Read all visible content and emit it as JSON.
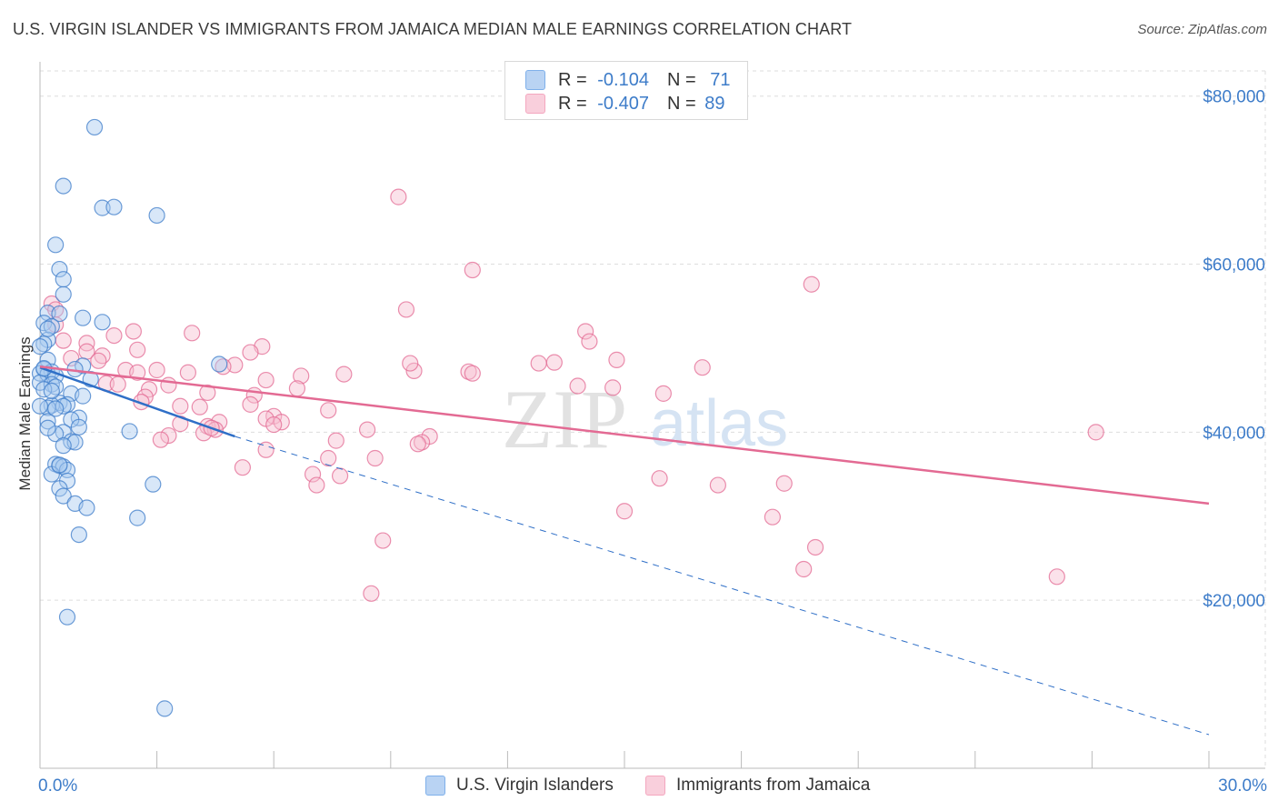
{
  "title": "U.S. VIRGIN ISLANDER VS IMMIGRANTS FROM JAMAICA MEDIAN MALE EARNINGS CORRELATION CHART",
  "source": "Source: ZipAtlas.com",
  "watermark": {
    "zip": "ZIP",
    "atlas": "atlas"
  },
  "legend": {
    "rows": [
      {
        "r_label": "R =",
        "r_value": "-0.104",
        "n_label": "N =",
        "n_value": "71",
        "color": "#7fb0ea"
      },
      {
        "r_label": "R =",
        "r_value": "-0.407",
        "n_label": "N =",
        "n_value": "89",
        "color": "#f4a7bf"
      }
    ]
  },
  "bottom_legend": [
    {
      "label": "U.S. Virgin Islanders",
      "color": "#7fb0ea"
    },
    {
      "label": "Immigrants from Jamaica",
      "color": "#f4a7bf"
    }
  ],
  "chart_data": {
    "type": "scatter",
    "title": "U.S. VIRGIN ISLANDER VS IMMIGRANTS FROM JAMAICA MEDIAN MALE EARNINGS CORRELATION CHART",
    "xlabel": "",
    "ylabel": "Median Male Earnings",
    "xlim": [
      0,
      30
    ],
    "ylim": [
      0,
      83000
    ],
    "x_tick_labels": [
      "0.0%",
      "30.0%"
    ],
    "y_ticks": [
      20000,
      40000,
      60000,
      80000
    ],
    "y_tick_labels": [
      "$20,000",
      "$40,000",
      "$60,000",
      "$80,000"
    ],
    "series": [
      {
        "name": "U.S. Virgin Islanders",
        "color": "#3d7cc9",
        "fill": "#a9c9f0",
        "points": [
          [
            1.4,
            76300
          ],
          [
            0.6,
            69300
          ],
          [
            1.6,
            66700
          ],
          [
            1.9,
            66800
          ],
          [
            3.0,
            65800
          ],
          [
            0.4,
            62300
          ],
          [
            0.5,
            59400
          ],
          [
            0.6,
            58200
          ],
          [
            0.6,
            56400
          ],
          [
            0.2,
            54200
          ],
          [
            0.5,
            54100
          ],
          [
            1.1,
            53600
          ],
          [
            1.6,
            53100
          ],
          [
            0.1,
            53000
          ],
          [
            0.3,
            52600
          ],
          [
            0.2,
            51000
          ],
          [
            0.1,
            50500
          ],
          [
            0.0,
            50200
          ],
          [
            0.2,
            48600
          ],
          [
            1.1,
            47900
          ],
          [
            0.1,
            47500
          ],
          [
            0.3,
            47200
          ],
          [
            0.0,
            47000
          ],
          [
            0.2,
            46900
          ],
          [
            0.4,
            46700
          ],
          [
            1.3,
            46300
          ],
          [
            0.0,
            45900
          ],
          [
            0.3,
            45700
          ],
          [
            0.4,
            45400
          ],
          [
            0.1,
            45100
          ],
          [
            0.8,
            44600
          ],
          [
            1.1,
            44300
          ],
          [
            0.5,
            43500
          ],
          [
            0.7,
            43300
          ],
          [
            0.3,
            43200
          ],
          [
            0.6,
            43100
          ],
          [
            0.2,
            42900
          ],
          [
            1.0,
            41700
          ],
          [
            0.8,
            41500
          ],
          [
            0.2,
            41300
          ],
          [
            1.0,
            40600
          ],
          [
            0.6,
            40000
          ],
          [
            0.4,
            39800
          ],
          [
            2.3,
            40100
          ],
          [
            0.8,
            38900
          ],
          [
            0.9,
            38800
          ],
          [
            0.4,
            36200
          ],
          [
            0.5,
            36000
          ],
          [
            0.6,
            35900
          ],
          [
            0.3,
            35000
          ],
          [
            0.7,
            35500
          ],
          [
            0.7,
            34200
          ],
          [
            2.9,
            33800
          ],
          [
            0.5,
            33300
          ],
          [
            0.6,
            32400
          ],
          [
            0.9,
            31500
          ],
          [
            1.2,
            31000
          ],
          [
            2.5,
            29800
          ],
          [
            1.0,
            27800
          ],
          [
            0.7,
            18000
          ],
          [
            3.2,
            7100
          ],
          [
            4.6,
            48100
          ],
          [
            0.5,
            36100
          ],
          [
            0.2,
            40500
          ],
          [
            0.1,
            47600
          ],
          [
            0.3,
            44900
          ],
          [
            0.0,
            43100
          ],
          [
            0.9,
            47500
          ],
          [
            0.6,
            38400
          ],
          [
            0.4,
            42800
          ],
          [
            0.2,
            52300
          ]
        ]
      },
      {
        "name": "Immigrants from Jamaica",
        "color": "#e36a93",
        "fill": "#f6bfd0",
        "points": [
          [
            0.3,
            55300
          ],
          [
            0.4,
            54600
          ],
          [
            0.4,
            52800
          ],
          [
            0.6,
            50900
          ],
          [
            2.4,
            52000
          ],
          [
            3.9,
            51800
          ],
          [
            1.9,
            51500
          ],
          [
            1.2,
            50600
          ],
          [
            2.5,
            49800
          ],
          [
            1.2,
            49600
          ],
          [
            5.7,
            50200
          ],
          [
            5.4,
            49500
          ],
          [
            1.6,
            49100
          ],
          [
            0.8,
            48800
          ],
          [
            1.5,
            48500
          ],
          [
            5.0,
            48000
          ],
          [
            4.7,
            47800
          ],
          [
            2.2,
            47400
          ],
          [
            3.0,
            47400
          ],
          [
            3.8,
            47100
          ],
          [
            2.5,
            47100
          ],
          [
            6.7,
            46700
          ],
          [
            7.8,
            46900
          ],
          [
            1.7,
            45800
          ],
          [
            2.0,
            45700
          ],
          [
            3.3,
            45600
          ],
          [
            2.8,
            45100
          ],
          [
            6.6,
            45200
          ],
          [
            4.3,
            44700
          ],
          [
            5.5,
            44400
          ],
          [
            2.7,
            44200
          ],
          [
            2.6,
            43600
          ],
          [
            3.6,
            43100
          ],
          [
            5.4,
            43300
          ],
          [
            4.1,
            43000
          ],
          [
            7.4,
            42600
          ],
          [
            6.0,
            41900
          ],
          [
            5.8,
            41600
          ],
          [
            6.2,
            41200
          ],
          [
            4.6,
            41200
          ],
          [
            6.0,
            40900
          ],
          [
            3.6,
            41000
          ],
          [
            4.3,
            40700
          ],
          [
            4.5,
            40300
          ],
          [
            4.2,
            39900
          ],
          [
            3.3,
            39600
          ],
          [
            3.1,
            39100
          ],
          [
            7.6,
            39000
          ],
          [
            8.4,
            40300
          ],
          [
            10.0,
            39500
          ],
          [
            9.8,
            38800
          ],
          [
            9.7,
            38600
          ],
          [
            5.8,
            37900
          ],
          [
            8.6,
            36900
          ],
          [
            7.4,
            36900
          ],
          [
            5.2,
            35800
          ],
          [
            7.0,
            35000
          ],
          [
            7.7,
            34800
          ],
          [
            7.1,
            33700
          ],
          [
            8.8,
            27100
          ],
          [
            8.5,
            20800
          ],
          [
            9.2,
            68000
          ],
          [
            11.1,
            59300
          ],
          [
            9.4,
            54600
          ],
          [
            14.0,
            52000
          ],
          [
            14.1,
            50800
          ],
          [
            14.8,
            48600
          ],
          [
            13.2,
            48300
          ],
          [
            12.8,
            48200
          ],
          [
            17.0,
            47700
          ],
          [
            9.6,
            47300
          ],
          [
            11.0,
            47200
          ],
          [
            13.8,
            45500
          ],
          [
            14.7,
            45300
          ],
          [
            16.0,
            44600
          ],
          [
            9.5,
            48200
          ],
          [
            19.8,
            57600
          ],
          [
            17.4,
            33700
          ],
          [
            15.9,
            34500
          ],
          [
            15.0,
            30600
          ],
          [
            19.1,
            33900
          ],
          [
            18.8,
            29900
          ],
          [
            19.9,
            26300
          ],
          [
            19.6,
            23700
          ],
          [
            26.1,
            22800
          ],
          [
            27.1,
            40000
          ],
          [
            11.1,
            47000
          ],
          [
            5.8,
            46200
          ],
          [
            4.4,
            40500
          ]
        ]
      }
    ],
    "trendlines": [
      {
        "series": "U.S. Virgin Islanders",
        "solid_from_x": 0.0,
        "solid_to_x": 5.0,
        "dashed_to_x": 30.0,
        "y_start": 47700,
        "y_solid_end": 39500,
        "y_dashed_end": 4000
      },
      {
        "series": "Immigrants from Jamaica",
        "from_x": 0.0,
        "to_x": 30.0,
        "y_start": 47800,
        "y_end": 31500
      }
    ]
  }
}
